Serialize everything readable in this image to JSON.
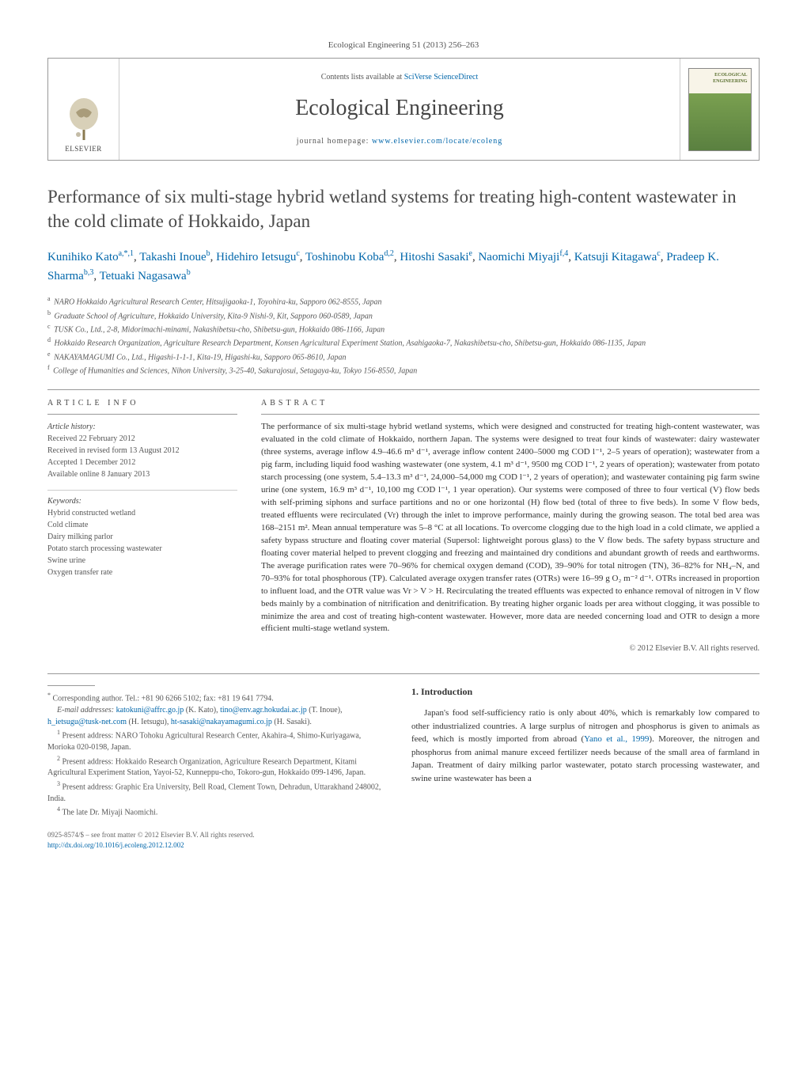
{
  "journal_ref": "Ecological Engineering 51 (2013) 256–263",
  "header": {
    "contents_prefix": "Contents lists available at ",
    "contents_link": "SciVerse ScienceDirect",
    "journal_name": "Ecological Engineering",
    "homepage_prefix": "journal homepage: ",
    "homepage_url": "www.elsevier.com/locate/ecoleng",
    "elsevier_label": "ELSEVIER",
    "cover_label": "ECOLOGICAL ENGINEERING"
  },
  "article": {
    "title": "Performance of six multi-stage hybrid wetland systems for treating high-content wastewater in the cold climate of Hokkaido, Japan",
    "authors_html": "Kunihiko Kato<sup>a,*,1</sup>, Takashi Inoue<sup>b</sup>, Hidehiro Ietsugu<sup>c</sup>, Toshinobu Koba<sup>d,2</sup>, Hitoshi Sasaki<sup>e</sup>, Naomichi Miyaji<sup>f,4</sup>, Katsuji Kitagawa<sup>c</sup>, Pradeep K. Sharma<sup>b,3</sup>, Tetuaki Nagasawa<sup>b</sup>",
    "affiliations": [
      {
        "sup": "a",
        "text": "NARO Hokkaido Agricultural Research Center, Hitsujigaoka-1, Toyohira-ku, Sapporo 062-8555, Japan"
      },
      {
        "sup": "b",
        "text": "Graduate School of Agriculture, Hokkaido University, Kita-9 Nishi-9, Kit, Sapporo 060-0589, Japan"
      },
      {
        "sup": "c",
        "text": "TUSK Co., Ltd., 2-8, Midorimachi-minami, Nakashibetsu-cho, Shibetsu-gun, Hokkaido 086-1166, Japan"
      },
      {
        "sup": "d",
        "text": "Hokkaido Research Organization, Agriculture Research Department, Konsen Agricultural Experiment Station, Asahigaoka-7, Nakashibetsu-cho, Shibetsu-gun, Hokkaido 086-1135, Japan"
      },
      {
        "sup": "e",
        "text": "NAKAYAMAGUMI Co., Ltd., Higashi-1-1-1, Kita-19, Higashi-ku, Sapporo 065-8610, Japan"
      },
      {
        "sup": "f",
        "text": "College of Humanities and Sciences, Nihon University, 3-25-40, Sakurajosui, Setagaya-ku, Tokyo 156-8550, Japan"
      }
    ]
  },
  "article_info": {
    "heading": "article info",
    "history_label": "Article history:",
    "history": [
      "Received 22 February 2012",
      "Received in revised form 13 August 2012",
      "Accepted 1 December 2012",
      "Available online 8 January 2013"
    ],
    "keywords_label": "Keywords:",
    "keywords": [
      "Hybrid constructed wetland",
      "Cold climate",
      "Dairy milking parlor",
      "Potato starch processing wastewater",
      "Swine urine",
      "Oxygen transfer rate"
    ]
  },
  "abstract": {
    "heading": "abstract",
    "text": "The performance of six multi-stage hybrid wetland systems, which were designed and constructed for treating high-content wastewater, was evaluated in the cold climate of Hokkaido, northern Japan. The systems were designed to treat four kinds of wastewater: dairy wastewater (three systems, average inflow 4.9–46.6 m³ d⁻¹, average inflow content 2400–5000 mg COD l⁻¹, 2–5 years of operation); wastewater from a pig farm, including liquid food washing wastewater (one system, 4.1 m³ d⁻¹, 9500 mg COD l⁻¹, 2 years of operation); wastewater from potato starch processing (one system, 5.4–13.3 m³ d⁻¹, 24,000–54,000 mg COD l⁻¹, 2 years of operation); and wastewater containing pig farm swine urine (one system, 16.9 m³ d⁻¹, 10,100 mg COD l⁻¹, 1 year operation). Our systems were composed of three to four vertical (V) flow beds with self-priming siphons and surface partitions and no or one horizontal (H) flow bed (total of three to five beds). In some V flow beds, treated effluents were recirculated (Vr) through the inlet to improve performance, mainly during the growing season. The total bed area was 168–2151 m². Mean annual temperature was 5–8 °C at all locations. To overcome clogging due to the high load in a cold climate, we applied a safety bypass structure and floating cover material (Supersol: lightweight porous glass) to the V flow beds. The safety bypass structure and floating cover material helped to prevent clogging and freezing and maintained dry conditions and abundant growth of reeds and earthworms. The average purification rates were 70–96% for chemical oxygen demand (COD), 39–90% for total nitrogen (TN), 36–82% for NH₄–N, and 70–93% for total phosphorous (TP). Calculated average oxygen transfer rates (OTRs) were 16–99 g O₂ m⁻² d⁻¹. OTRs increased in proportion to influent load, and the OTR value was Vr > V > H. Recirculating the treated effluents was expected to enhance removal of nitrogen in V flow beds mainly by a combination of nitrification and denitrification. By treating higher organic loads per area without clogging, it was possible to minimize the area and cost of treating high-content wastewater. However, more data are needed concerning load and OTR to design a more efficient multi-stage wetland system.",
    "copyright": "© 2012 Elsevier B.V. All rights reserved."
  },
  "footnotes": {
    "corresponding": "Corresponding author. Tel.: +81 90 6266 5102; fax: +81 19 641 7794.",
    "emails_label": "E-mail addresses: ",
    "emails": [
      {
        "addr": "katokuni@affrc.go.jp",
        "who": "(K. Kato)"
      },
      {
        "addr": "tino@env.agr.hokudai.ac.jp",
        "who": "(T. Inoue)"
      },
      {
        "addr": "h_ietsugu@tusk-net.com",
        "who": "(H. Ietsugu)"
      },
      {
        "addr": "ht-sasaki@nakayamagumi.co.jp",
        "who": "(H. Sasaki)"
      }
    ],
    "notes": [
      {
        "sup": "1",
        "text": "Present address: NARO Tohoku Agricultural Research Center, Akahira-4, Shimo-Kuriyagawa, Morioka 020-0198, Japan."
      },
      {
        "sup": "2",
        "text": "Present address: Hokkaido Research Organization, Agriculture Research Department, Kitami Agricultural Experiment Station, Yayoi-52, Kunneppu-cho, Tokoro-gun, Hokkaido 099-1496, Japan."
      },
      {
        "sup": "3",
        "text": "Present address: Graphic Era University, Bell Road, Clement Town, Dehradun, Uttarakhand 248002, India."
      },
      {
        "sup": "4",
        "text": "The late Dr. Miyaji Naomichi."
      }
    ]
  },
  "intro": {
    "heading": "1.  Introduction",
    "text_before_cite": "Japan's food self-sufficiency ratio is only about 40%, which is remarkably low compared to other industrialized countries. A large surplus of nitrogen and phosphorus is given to animals as feed, which is mostly imported from abroad (",
    "cite": "Yano et al., 1999",
    "text_after_cite": "). Moreover, the nitrogen and phosphorus from animal manure exceed fertilizer needs because of the small area of farmland in Japan. Treatment of dairy milking parlor wastewater, potato starch processing wastewater, and swine urine wastewater has been a"
  },
  "footer": {
    "issn_line": "0925-8574/$ – see front matter © 2012 Elsevier B.V. All rights reserved.",
    "doi": "http://dx.doi.org/10.1016/j.ecoleng.2012.12.002"
  },
  "colors": {
    "link": "#0066aa",
    "text": "#333333",
    "muted": "#555555",
    "rule": "#999999",
    "cover_top": "#f8f4e8",
    "cover_bottom": "#5a8040"
  },
  "typography": {
    "title_fontsize": 23,
    "journal_name_fontsize": 28,
    "body_fontsize": 11,
    "small_fontsize": 10
  }
}
